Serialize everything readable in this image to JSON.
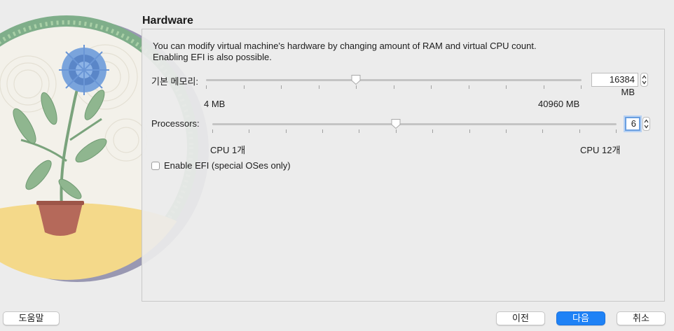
{
  "hardware": {
    "section_title": "Hardware",
    "description_line1": "You can modify virtual machine's hardware by changing amount of RAM and virtual CPU count.",
    "description_line2": "Enabling EFI is also possible.",
    "memory": {
      "label": "기본 메모리:",
      "min_label": "4 MB",
      "max_label": "40960 MB",
      "value": "16384 MB",
      "min": 4,
      "max": 40960,
      "current": 16384
    },
    "processors": {
      "label": "Processors:",
      "min_label": "CPU 1개",
      "max_label": "CPU 12개",
      "value": "6",
      "min": 1,
      "max": 12,
      "current": 6
    },
    "efi": {
      "label": "Enable EFI (special OSes only)",
      "checked": false
    }
  },
  "footer": {
    "help_label": "도움말",
    "back_label": "이전",
    "next_label": "다음",
    "cancel_label": "취소"
  },
  "colors": {
    "accent": "#1f82f6",
    "background": "#ececec"
  },
  "icons": [
    "plant-illustration",
    "slider-thumb-icon",
    "stepper-arrows-icon"
  ]
}
